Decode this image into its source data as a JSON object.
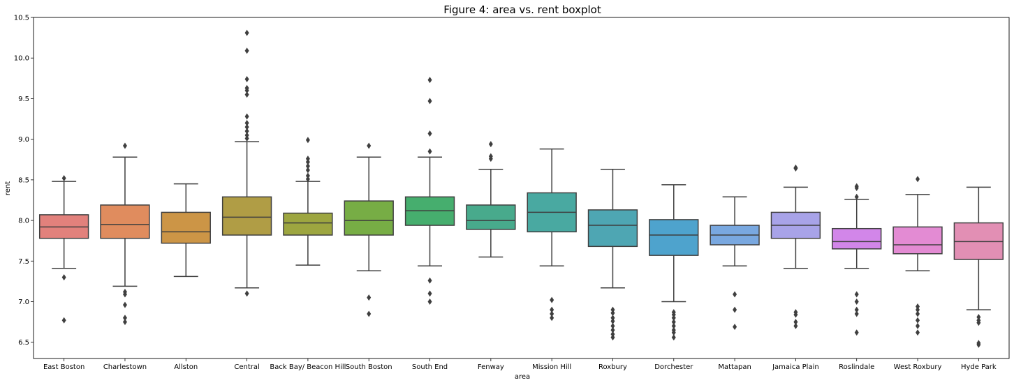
{
  "chart_data": {
    "type": "boxplot",
    "title": "Figure 4: area vs. rent boxplot",
    "xlabel": "area",
    "ylabel": "rent",
    "ylim": [
      6.3,
      10.5
    ],
    "yticks": [
      "6.5",
      "7.0",
      "7.5",
      "8.0",
      "8.5",
      "9.0",
      "9.5",
      "10.0",
      "10.5"
    ],
    "grid": false,
    "series": [
      {
        "name": "East Boston",
        "color": "#e2817c",
        "whisker_low": 7.41,
        "q1": 7.78,
        "median": 7.92,
        "q3": 8.07,
        "whisker_high": 8.48,
        "outliers": [
          6.77,
          7.3,
          8.52
        ]
      },
      {
        "name": "Charlestown",
        "color": "#e08c5e",
        "whisker_low": 7.19,
        "q1": 7.78,
        "median": 7.95,
        "q3": 8.19,
        "whisker_high": 8.78,
        "outliers": [
          6.75,
          6.8,
          6.96,
          7.09,
          7.12,
          8.92
        ]
      },
      {
        "name": "Allston",
        "color": "#cc9546",
        "whisker_low": 7.31,
        "q1": 7.72,
        "median": 7.86,
        "q3": 8.1,
        "whisker_high": 8.45,
        "outliers": []
      },
      {
        "name": "Central",
        "color": "#b09d45",
        "whisker_low": 7.17,
        "q1": 7.82,
        "median": 8.04,
        "q3": 8.29,
        "whisker_high": 8.97,
        "outliers": [
          7.1,
          9.01,
          9.05,
          9.1,
          9.15,
          9.2,
          9.28,
          9.55,
          9.6,
          9.63,
          9.74,
          10.09,
          10.31
        ]
      },
      {
        "name": "Back Bay/ Beacon Hill",
        "color": "#9da640",
        "whisker_low": 7.45,
        "q1": 7.82,
        "median": 7.97,
        "q3": 8.09,
        "whisker_high": 8.48,
        "outliers": [
          8.51,
          8.55,
          8.62,
          8.67,
          8.72,
          8.76,
          8.99
        ]
      },
      {
        "name": "South Boston",
        "color": "#77ad45",
        "whisker_low": 7.38,
        "q1": 7.82,
        "median": 8.0,
        "q3": 8.24,
        "whisker_high": 8.78,
        "outliers": [
          6.85,
          7.05,
          8.92
        ]
      },
      {
        "name": "South End",
        "color": "#46ae6e",
        "whisker_low": 7.44,
        "q1": 7.94,
        "median": 8.12,
        "q3": 8.29,
        "whisker_high": 8.78,
        "outliers": [
          7.0,
          7.1,
          7.26,
          8.85,
          9.07,
          9.47,
          9.73
        ]
      },
      {
        "name": "Fenway",
        "color": "#48aa8c",
        "whisker_low": 7.55,
        "q1": 7.89,
        "median": 8.0,
        "q3": 8.19,
        "whisker_high": 8.63,
        "outliers": [
          8.76,
          8.79,
          8.94
        ]
      },
      {
        "name": "Mission Hill",
        "color": "#49a9a1",
        "whisker_low": 7.44,
        "q1": 7.86,
        "median": 8.1,
        "q3": 8.34,
        "whisker_high": 8.88,
        "outliers": [
          6.8,
          6.85,
          6.9,
          7.02
        ]
      },
      {
        "name": "Roxbury",
        "color": "#4ea6b3",
        "whisker_low": 7.17,
        "q1": 7.68,
        "median": 7.94,
        "q3": 8.13,
        "whisker_high": 8.63,
        "outliers": [
          6.56,
          6.6,
          6.65,
          6.7,
          6.76,
          6.8,
          6.86,
          6.9
        ]
      },
      {
        "name": "Dorchester",
        "color": "#4ea3cd",
        "whisker_low": 7.0,
        "q1": 7.57,
        "median": 7.82,
        "q3": 8.01,
        "whisker_high": 8.44,
        "outliers": [
          6.56,
          6.62,
          6.65,
          6.7,
          6.75,
          6.8,
          6.84,
          6.87
        ]
      },
      {
        "name": "Mattapan",
        "color": "#79a8e0",
        "whisker_low": 7.44,
        "q1": 7.7,
        "median": 7.82,
        "q3": 7.94,
        "whisker_high": 8.29,
        "outliers": [
          6.69,
          6.9,
          7.09
        ]
      },
      {
        "name": "Jamaica Plain",
        "color": "#a8a3e8",
        "whisker_low": 7.41,
        "q1": 7.78,
        "median": 7.94,
        "q3": 8.1,
        "whisker_high": 8.41,
        "outliers": [
          6.7,
          6.75,
          6.84,
          6.87,
          8.64,
          8.65
        ]
      },
      {
        "name": "Roslindale",
        "color": "#d286e9",
        "whisker_low": 7.41,
        "q1": 7.65,
        "median": 7.74,
        "q3": 7.9,
        "whisker_high": 8.26,
        "outliers": [
          6.62,
          6.85,
          6.9,
          7.0,
          7.09,
          8.29,
          8.4,
          8.42
        ]
      },
      {
        "name": "West Roxbury",
        "color": "#e38bd3",
        "whisker_low": 7.38,
        "q1": 7.59,
        "median": 7.7,
        "q3": 7.92,
        "whisker_high": 8.32,
        "outliers": [
          6.62,
          6.7,
          6.77,
          6.85,
          6.9,
          6.94,
          8.51
        ]
      },
      {
        "name": "Hyde Park",
        "color": "#e28fb4",
        "whisker_low": 6.9,
        "q1": 7.52,
        "median": 7.74,
        "q3": 7.97,
        "whisker_high": 8.41,
        "outliers": [
          6.47,
          6.49,
          6.74,
          6.77,
          6.81
        ]
      }
    ]
  }
}
